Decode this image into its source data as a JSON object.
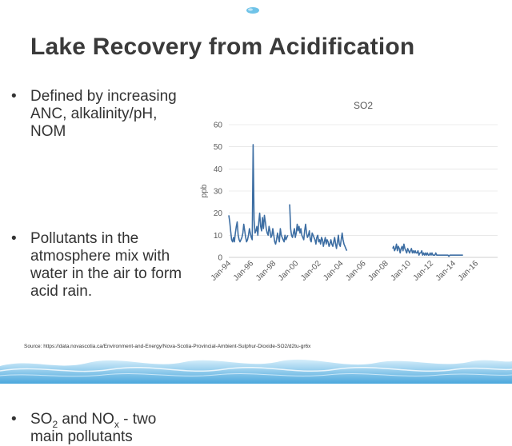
{
  "slide": {
    "title": "Lake Recovery from Acidification",
    "bullets": {
      "b1_text": "Defined by increasing ANC, alkalinity/pH, NOM",
      "b2_text": "Pollutants in the atmosphere mix with water in the air to form acid rain.",
      "b3_so": "SO",
      "b3_so_sub": "2",
      "b3_and": " and NO",
      "b3_no_sub": "x",
      "b3_rest": " - two main pollutants"
    },
    "source": "Source: https://data.novascotia.ca/Environment-and-Energy/Nova-Scotia-Provincial-Ambient-Sulphur-Dioxide-SO2/d2tu-gr6x",
    "bullet_char": "•"
  },
  "colors": {
    "line": "#3d6ea3",
    "title": "#3a3a3a",
    "axis_text": "#595959",
    "grid": "#d9d9d9"
  },
  "chart_data": {
    "type": "line",
    "title": "SO2",
    "ylabel": "ppb",
    "xlabel": "",
    "ylim": [
      0,
      60
    ],
    "y_ticks": [
      0,
      10,
      20,
      30,
      40,
      50,
      60
    ],
    "x_ticks": [
      "Jan-94",
      "Jan-96",
      "Jan-98",
      "Jan-00",
      "Jan-02",
      "Jan-04",
      "Jan-06",
      "Jan-08",
      "Jan-10",
      "Jan-12",
      "Jan-14",
      "Jan-16"
    ],
    "grid": true,
    "x_range": [
      "1994-01",
      "2017-12"
    ],
    "series": [
      {
        "x_start": "1994-01",
        "values": [
          19,
          16,
          12,
          8,
          7,
          9,
          7,
          11,
          14,
          16,
          10,
          8,
          7,
          8,
          9,
          11,
          15,
          12,
          9,
          7,
          8,
          10,
          13,
          11,
          9,
          8,
          51,
          17,
          11,
          12,
          14,
          10,
          16,
          20,
          14,
          12,
          18,
          13,
          19,
          16,
          13,
          11,
          10,
          14,
          12,
          9,
          10,
          13,
          10,
          7,
          6,
          8,
          11,
          9,
          7,
          13,
          10,
          9,
          8,
          7,
          10,
          8,
          9,
          10
        ]
      },
      {
        "x_start": "1999-06",
        "values": [
          24,
          13,
          10,
          9,
          11,
          13,
          9,
          11,
          15,
          12,
          14,
          11,
          13,
          10,
          9,
          8,
          12,
          15,
          11,
          9,
          10,
          12,
          8,
          7,
          11,
          10,
          9,
          8,
          6,
          9,
          10,
          7,
          8,
          6,
          9,
          8,
          5,
          7,
          9,
          6,
          8,
          7,
          5,
          6,
          8,
          6,
          5,
          7,
          9,
          6,
          4,
          7,
          10,
          6,
          5,
          8,
          11,
          8,
          6,
          5,
          4,
          3
        ]
      },
      {
        "x_start": "2008-08",
        "values": [
          4,
          5,
          3,
          4,
          6,
          3,
          5,
          4,
          2,
          4,
          5,
          3,
          6,
          4,
          3,
          2,
          4,
          3,
          2,
          3,
          4,
          2,
          3,
          2,
          3,
          2,
          2,
          3,
          1,
          2,
          2,
          3,
          1,
          2,
          1,
          2,
          1,
          2,
          1,
          1,
          2,
          1,
          2,
          1,
          1,
          1,
          2,
          1,
          1,
          1,
          1,
          1,
          1,
          1,
          1,
          1,
          1,
          1,
          1,
          1,
          0.5,
          1,
          1,
          1,
          1,
          1,
          1,
          1,
          1,
          1,
          1,
          1,
          1,
          1,
          1,
          1
        ]
      }
    ]
  }
}
